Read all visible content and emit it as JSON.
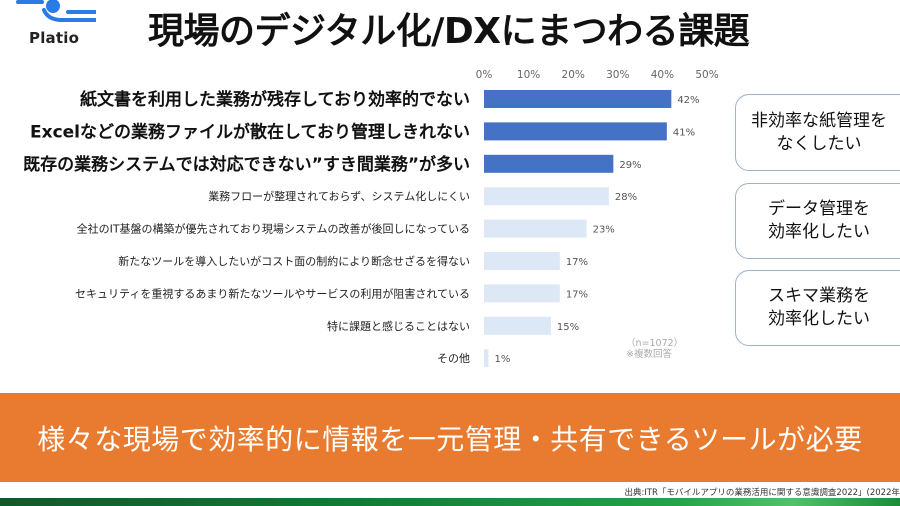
{
  "header": {
    "logo_text": "Platio",
    "title": "現場のデジタル化/DXにまつわる課題"
  },
  "colors": {
    "primary_bar": "#4472c4",
    "secondary_bar": "#dde8f6",
    "banner": "#e87b2f",
    "logo_blue": "#2a7be4"
  },
  "chart_data": {
    "type": "bar",
    "orientation": "horizontal",
    "title": "",
    "xlabel": "",
    "ylabel": "",
    "xlim": [
      0,
      50
    ],
    "x_ticks": [
      "0%",
      "10%",
      "20%",
      "30%",
      "40%",
      "50%"
    ],
    "x_tick_values": [
      0,
      10,
      20,
      30,
      40,
      50
    ],
    "grid": false,
    "categories": [
      "紙文書を利用した業務が残存しており効率的でない",
      "Excelなどの業務ファイルが散在しており管理しきれない",
      "既存の業務システムでは対応できない”すき間業務”が多い",
      "業務フローが整理されておらず、システム化しにくい",
      "全社のIT基盤の構築が優先されており現場システムの改善が後回しになっている",
      "新たなツールを導入したいがコスト面の制約により断念せざるを得ない",
      "セキュリティを重視するあまり新たなツールやサービスの利用が阻害されている",
      "特に課題と感じることはない",
      "その他"
    ],
    "values": [
      42,
      41,
      29,
      28,
      23,
      17,
      17,
      15,
      1
    ],
    "value_labels": [
      "42%",
      "41%",
      "29%",
      "28%",
      "23%",
      "17%",
      "17%",
      "15%",
      "1%"
    ],
    "highlighted_count": 3,
    "notes": [
      "（n=1072）",
      "※複数回答"
    ]
  },
  "callouts": [
    {
      "lines": [
        "非効率な紙管理を",
        "なくしたい"
      ]
    },
    {
      "lines": [
        "データ管理を",
        "効率化したい"
      ]
    },
    {
      "lines": [
        "スキマ業務を",
        "効率化したい"
      ]
    }
  ],
  "banner": {
    "text": "様々な現場で効率的に情報を一元管理・共有できるツールが必要"
  },
  "source": "出典:ITR「モバイルアプリの業務活用に関する意識調査2022」(2022年"
}
